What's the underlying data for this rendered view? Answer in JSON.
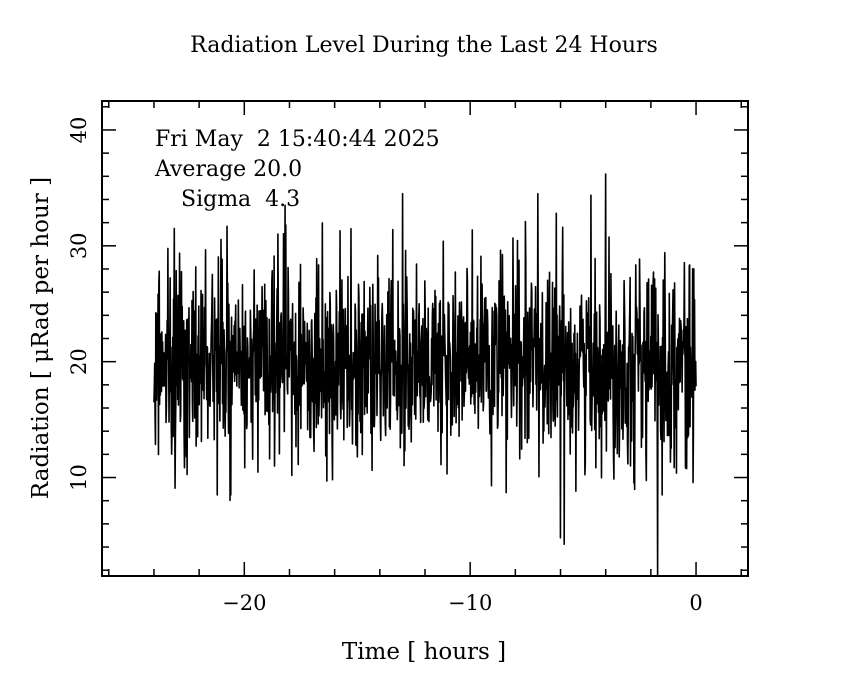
{
  "chart_data": {
    "type": "line",
    "title": "Radiation Level During the Last 24 Hours",
    "xlabel": "Time [ hours ]",
    "ylabel": "Radiation [ μRad per hour ]",
    "xlim": [
      -26.3,
      2.3
    ],
    "ylim": [
      1.5,
      42.5
    ],
    "x_ticks": [
      -20,
      -10,
      0
    ],
    "x_tick_labels": [
      "−20",
      "−10",
      "0"
    ],
    "y_ticks": [
      10,
      20,
      30,
      40
    ],
    "y_tick_labels": [
      "10",
      "20",
      "30",
      "40"
    ],
    "grid": false,
    "annotations": {
      "timestamp": "Fri May  2 15:40:44 2025",
      "average": "Average 20.0",
      "sigma": "Sigma  4.3"
    },
    "series": [
      {
        "x_start": -24,
        "x_end": 0,
        "points": 1440,
        "mean": 20.0,
        "sigma": 4.3,
        "notable_points": [
          {
            "x": -20.6,
            "y": 32.5
          },
          {
            "x": -23.1,
            "y": 31.5
          },
          {
            "x": -18.2,
            "y": 33.5
          },
          {
            "x": -13.0,
            "y": 34.5
          },
          {
            "x": -4.0,
            "y": 36.2
          },
          {
            "x": -7.0,
            "y": 34.5
          },
          {
            "x": -21.2,
            "y": 8.5
          },
          {
            "x": -20.6,
            "y": 8.5
          },
          {
            "x": -6.0,
            "y": 4.8
          },
          {
            "x": -1.7,
            "y": 1.5
          }
        ]
      }
    ]
  }
}
